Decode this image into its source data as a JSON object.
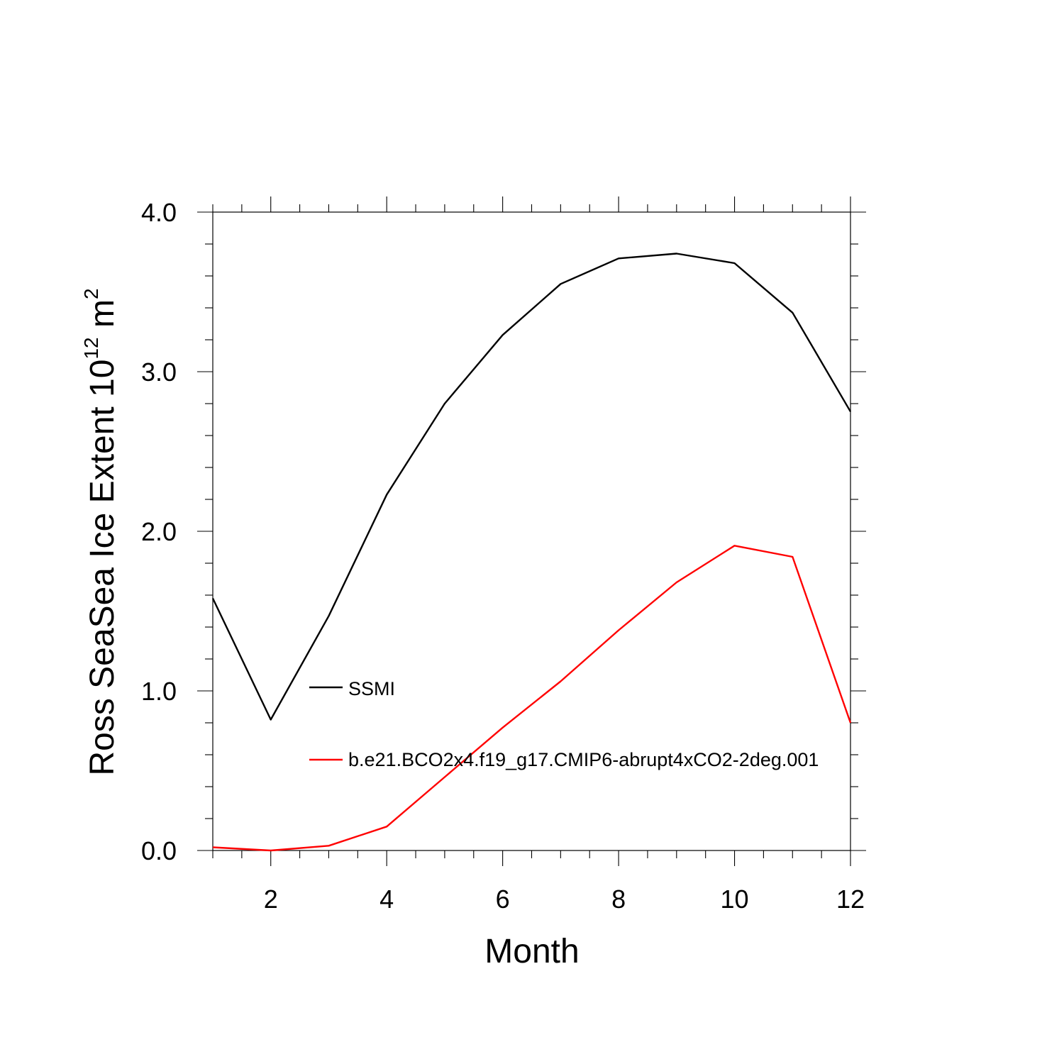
{
  "chart_data": {
    "type": "line",
    "title": "",
    "xlabel": "Month",
    "ylabel": {
      "main": "Ross SeaSea Ice Extent 10",
      "exponent": "12",
      "unit": " m",
      "unit_exponent": "2"
    },
    "xlim": [
      1,
      12
    ],
    "ylim": [
      0,
      4
    ],
    "x_ticks": [
      "2",
      "4",
      "6",
      "8",
      "10",
      "12"
    ],
    "y_ticks": [
      "0.0",
      "1.0",
      "2.0",
      "3.0",
      "4.0"
    ],
    "x": [
      1,
      2,
      3,
      4,
      5,
      6,
      7,
      8,
      9,
      10,
      11,
      12
    ],
    "series": [
      {
        "name": "SSMI",
        "color": "#000000",
        "values": [
          1.58,
          0.82,
          1.47,
          2.23,
          2.8,
          3.23,
          3.55,
          3.71,
          3.74,
          3.68,
          3.37,
          2.75
        ]
      },
      {
        "name": "b.e21.BCO2x4.f19_g17.CMIP6-abrupt4xCO2-2deg.001",
        "color": "#ff0000",
        "values": [
          0.02,
          0.0,
          0.03,
          0.15,
          0.46,
          0.77,
          1.06,
          1.38,
          1.68,
          1.91,
          1.84,
          0.8
        ]
      }
    ],
    "legend_position": "center-left"
  }
}
